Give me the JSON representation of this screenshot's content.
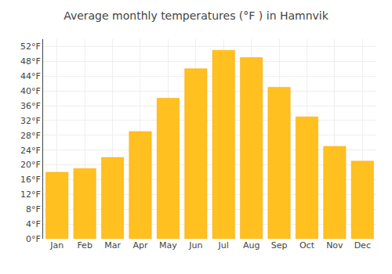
{
  "chart_data": {
    "type": "bar",
    "title": "Average monthly temperatures (°F ) in Hamnvik",
    "categories": [
      "Jan",
      "Feb",
      "Mar",
      "Apr",
      "May",
      "Jun",
      "Jul",
      "Aug",
      "Sep",
      "Oct",
      "Nov",
      "Dec"
    ],
    "values": [
      18,
      19,
      22,
      29,
      38,
      46,
      51,
      49,
      41,
      33,
      25,
      21
    ],
    "color": "#FFC020",
    "ylim": [
      0,
      54
    ],
    "yticks": [
      {
        "value": 0,
        "label": "0°F"
      },
      {
        "value": 4,
        "label": "4°F"
      },
      {
        "value": 8,
        "label": "8°F"
      },
      {
        "value": 12,
        "label": "12°F"
      },
      {
        "value": 16,
        "label": "16°F"
      },
      {
        "value": 20,
        "label": "20°F"
      },
      {
        "value": 24,
        "label": "24°F"
      },
      {
        "value": 28,
        "label": "28°F"
      },
      {
        "value": 32,
        "label": "32°F"
      },
      {
        "value": 36,
        "label": "36°F"
      },
      {
        "value": 40,
        "label": "40°F"
      },
      {
        "value": 44,
        "label": "44°F"
      },
      {
        "value": 48,
        "label": "48°F"
      },
      {
        "value": 52,
        "label": "52°F"
      }
    ],
    "grid": true
  }
}
